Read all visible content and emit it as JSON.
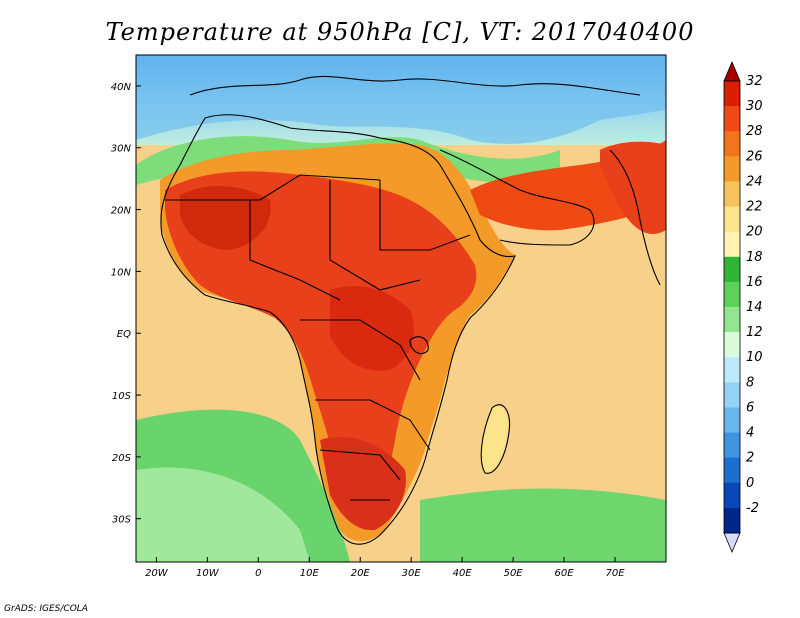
{
  "title": "Temperature at 950hPa [C], VT: 2017040400",
  "credit": "GrADS: IGES/COLA",
  "map": {
    "lon_range": [
      -24,
      80
    ],
    "lat_range": [
      -37,
      45
    ],
    "x_ticks": [
      "20W",
      "10W",
      "0",
      "10E",
      "20E",
      "30E",
      "40E",
      "50E",
      "60E",
      "70E"
    ],
    "y_ticks": [
      "40N",
      "30N",
      "20N",
      "10N",
      "EQ",
      "10S",
      "20S",
      "30S"
    ],
    "colors": {
      "ocean_base": "#f7d18a",
      "land_hot": "#e8401a"
    }
  },
  "colorbar": {
    "labels": [
      "32",
      "30",
      "28",
      "26",
      "24",
      "22",
      "20",
      "18",
      "16",
      "14",
      "12",
      "10",
      "8",
      "6",
      "4",
      "2",
      "0",
      "-2"
    ],
    "colors": [
      "#a50000",
      "#d91f00",
      "#ef4a14",
      "#f2751c",
      "#f49a28",
      "#f7c45b",
      "#fbe48a",
      "#fdf2b2",
      "#2fb533",
      "#5fd05b",
      "#92e690",
      "#d9fbdc",
      "#bfe9fb",
      "#93d1f5",
      "#68b6ee",
      "#3f94e2",
      "#1d6fcf",
      "#0a48b8",
      "#00268a",
      "#d7dbfb"
    ]
  }
}
